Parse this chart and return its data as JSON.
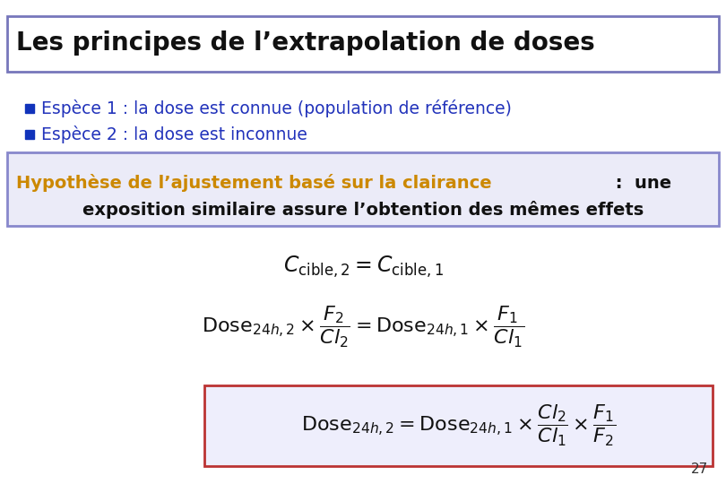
{
  "title": "Les principes de l’extrapolation de doses",
  "bullet1": "Espèce 1 : la dose est connue (population de référence)",
  "bullet2": "Espèce 2 : la dose est inconnue",
  "hypothesis_orange": "Hypothèse de l’ajustement basé sur la clairance",
  "hypothesis_rest": " :  une",
  "hypothesis_line2": "exposition similaire assure l’obtention des mêmes effets",
  "page_number": "27",
  "bg_color": "#ffffff",
  "title_bg": "#ffffff",
  "title_border": "#7777bb",
  "title_color": "#111111",
  "bullet_color": "#2233bb",
  "bullet_sq_color": "#1133bb",
  "orange_color": "#cc8800",
  "hyp_box_border": "#8888cc",
  "hyp_box_bg": "#ebebf8",
  "eq3_box_border": "#bb3333",
  "eq3_box_bg": "#eeeefc"
}
